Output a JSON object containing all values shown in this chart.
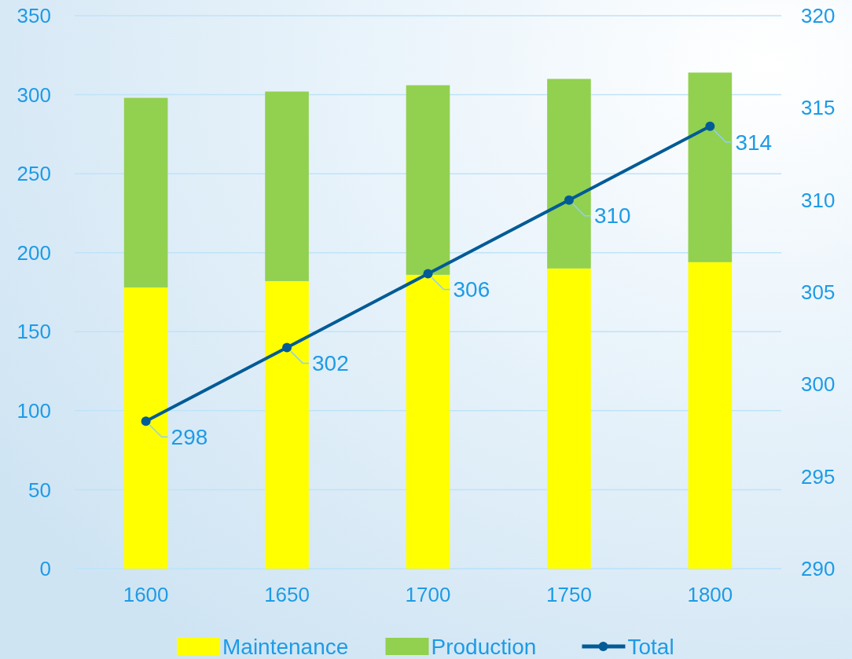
{
  "chart_data": {
    "type": "bar",
    "stacked": true,
    "categories": [
      "1600",
      "1650",
      "1700",
      "1750",
      "1800"
    ],
    "series": [
      {
        "name": "Maintenance",
        "color": "#ffff00",
        "values": [
          178,
          182,
          186,
          190,
          194
        ]
      },
      {
        "name": "Production",
        "color": "#92d050",
        "values": [
          120,
          120,
          120,
          120,
          120
        ]
      },
      {
        "name": "Total",
        "type": "line",
        "axis": "y2",
        "color": "#005b96",
        "marker": "circle",
        "values": [
          298,
          302,
          306,
          310,
          314
        ],
        "value_labels": [
          "298",
          "302",
          "306",
          "310",
          "314"
        ]
      }
    ],
    "ylim": [
      0,
      350
    ],
    "yticks": [
      0,
      50,
      100,
      150,
      200,
      250,
      300,
      350
    ],
    "y2lim": [
      290,
      320
    ],
    "y2ticks": [
      290,
      295,
      300,
      305,
      310,
      315,
      320
    ],
    "grid": "y",
    "legend": "bottom"
  }
}
